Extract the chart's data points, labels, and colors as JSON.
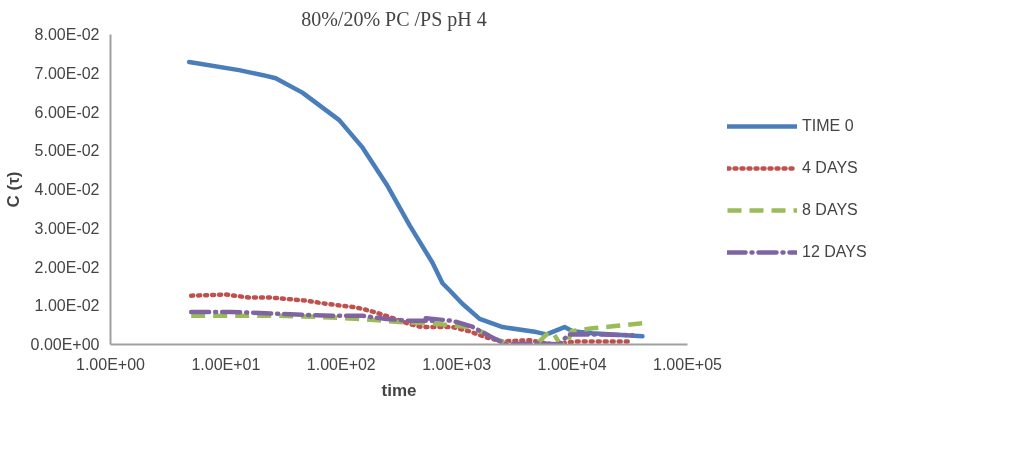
{
  "chart_data": {
    "type": "line",
    "title": "80%/20%   PC /PS pH 4",
    "xlabel": "time",
    "ylabel": "C (τ)",
    "log": "x",
    "grid": false,
    "legend": "right",
    "marker": "none",
    "xlim": [
      1,
      100000
    ],
    "xticks": [
      {
        "value": 1,
        "label": "1.00E+00"
      },
      {
        "value": 10,
        "label": "1.00E+01"
      },
      {
        "value": 100,
        "label": "1.00E+02"
      },
      {
        "value": 1000,
        "label": "1.00E+03"
      },
      {
        "value": 10000,
        "label": "1.00E+04"
      },
      {
        "value": 100000,
        "label": "1.00E+05"
      }
    ],
    "ylim": [
      0,
      0.08
    ],
    "yticks": [
      {
        "value": 0,
        "label": "0.00E+00"
      },
      {
        "value": 0.01,
        "label": "1.00E-02"
      },
      {
        "value": 0.02,
        "label": "2.00E-02"
      },
      {
        "value": 0.03,
        "label": "3.00E-02"
      },
      {
        "value": 0.04,
        "label": "4.00E-02"
      },
      {
        "value": 0.05,
        "label": "5.00E-02"
      },
      {
        "value": 0.06,
        "label": "6.00E-02"
      },
      {
        "value": 0.07,
        "label": "7.00E-02"
      },
      {
        "value": 0.08,
        "label": "8.00E-02"
      }
    ],
    "series": [
      {
        "name": "TIME 0",
        "color": "#4a7ebb",
        "line_style": "solid",
        "x": [
          4.8,
          13,
          21,
          27,
          46,
          96,
          153,
          247,
          390,
          617,
          753,
          866,
          1120,
          1580,
          2500,
          4900,
          6000,
          8600,
          10100,
          15000,
          40700
        ],
        "values": [
          0.0729,
          0.0708,
          0.0695,
          0.0687,
          0.065,
          0.0579,
          0.0508,
          0.0413,
          0.0308,
          0.0211,
          0.0158,
          0.014,
          0.0105,
          0.0066,
          0.0045,
          0.0032,
          0.0026,
          0.0045,
          0.0034,
          0.0029,
          0.0021
        ]
      },
      {
        "name": "4 DAYS",
        "color": "#c0504d",
        "line_style": "dotted",
        "x": [
          5,
          10,
          16,
          25,
          50,
          74,
          125,
          153,
          202,
          262,
          390,
          495,
          920,
          1290,
          1810,
          2500,
          4300,
          6800,
          10900,
          33400
        ],
        "values": [
          0.0126,
          0.0129,
          0.0121,
          0.0121,
          0.0113,
          0.0105,
          0.0097,
          0.0092,
          0.0082,
          0.0071,
          0.0053,
          0.0045,
          0.0045,
          0.0034,
          0.0018,
          0.0008,
          0.0011,
          0.0,
          0.0008,
          0.0008
        ]
      },
      {
        "name": "8 DAYS",
        "color": "#9bbb59",
        "line_style": "dashed",
        "x": [
          5,
          13,
          29,
          65,
          144,
          319,
          581,
          1290,
          1680,
          2700,
          4900,
          6000,
          6800,
          7800,
          9000,
          9900,
          15000,
          22400,
          40700
        ],
        "values": [
          0.0074,
          0.0074,
          0.0074,
          0.0071,
          0.0066,
          0.0058,
          0.0055,
          0.0045,
          0.0032,
          0.0,
          0.0,
          0.0026,
          0.0032,
          0.0003,
          0.0,
          0.0034,
          0.0042,
          0.0047,
          0.0055
        ]
      },
      {
        "name": "12 DAYS",
        "color": "#8064a2",
        "line_style": "dashdot",
        "x": [
          5,
          11,
          17,
          29,
          50,
          96,
          153,
          247,
          390,
          617,
          540,
          920,
          1340,
          1810,
          2700,
          5100,
          7800,
          9300,
          15000,
          33400
        ],
        "values": [
          0.0084,
          0.0084,
          0.0082,
          0.0079,
          0.0076,
          0.0074,
          0.0074,
          0.0066,
          0.0061,
          0.0061,
          0.0068,
          0.0061,
          0.0047,
          0.0026,
          0.0,
          0.0003,
          0.0,
          0.0026,
          0.0026,
          0.0024
        ]
      }
    ]
  }
}
